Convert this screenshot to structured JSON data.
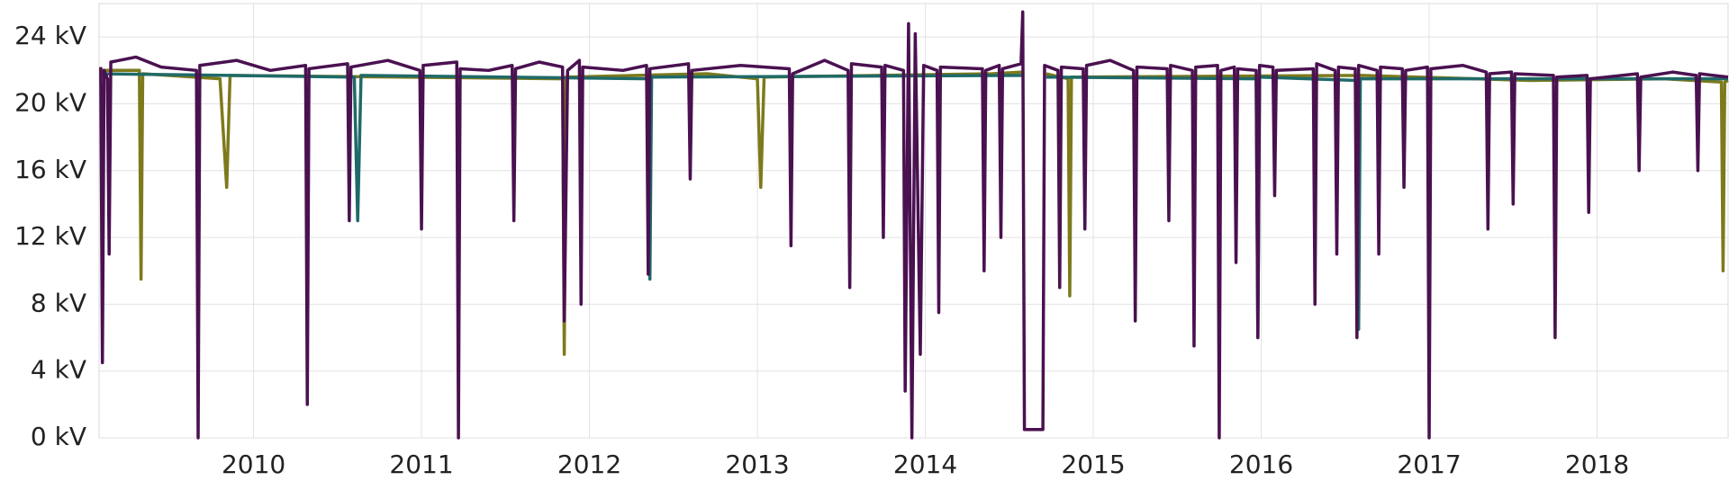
{
  "chart_data": {
    "type": "line",
    "xlim": [
      2009.08,
      2018.78
    ],
    "xticks": [
      2010,
      2011,
      2012,
      2013,
      2014,
      2015,
      2016,
      2017,
      2018
    ],
    "ylim": [
      0,
      26
    ],
    "yticks": [
      {
        "value": 0,
        "label": "0 kV"
      },
      {
        "value": 4,
        "label": "4 kV"
      },
      {
        "value": 8,
        "label": "8 kV"
      },
      {
        "value": 12,
        "label": "12 kV"
      },
      {
        "value": 16,
        "label": "16 kV"
      },
      {
        "value": 20,
        "label": "20 kV"
      },
      {
        "value": 24,
        "label": "24 kV"
      }
    ],
    "grid": true,
    "series": [
      {
        "color": "#7d7a1c",
        "x": [
          2009.09,
          2009.32,
          2009.33,
          2009.34,
          2009.8,
          2009.84,
          2009.86,
          2011.84,
          2011.85,
          2011.86,
          2012.7,
          2013.0,
          2013.02,
          2013.04,
          2014.4,
          2014.58,
          2014.59,
          2014.71,
          2014.72,
          2014.85,
          2014.86,
          2014.87,
          2016.6,
          2017.6,
          2018.4,
          2018.74,
          2018.75,
          2018.76,
          2018.78
        ],
        "values": [
          22,
          22,
          9.5,
          21.8,
          21.5,
          15,
          21.7,
          21.5,
          5,
          21.6,
          21.8,
          21.5,
          15,
          21.6,
          21.8,
          21.9,
          null,
          null,
          21.8,
          21.5,
          8.5,
          21.6,
          21.7,
          21.4,
          21.5,
          21.3,
          10,
          21.3,
          21.4
        ]
      },
      {
        "color": "#1f6a68",
        "x": [
          2009.09,
          2010.6,
          2010.62,
          2010.64,
          2012.35,
          2012.36,
          2012.37,
          2014.58,
          2014.59,
          2014.71,
          2014.72,
          2015.97,
          2015.98,
          2015.99,
          2016.57,
          2016.58,
          2016.59,
          2018.78
        ],
        "values": [
          21.8,
          21.6,
          13,
          21.7,
          21.5,
          9.5,
          21.6,
          21.7,
          null,
          null,
          21.6,
          21.5,
          6,
          21.6,
          21.4,
          6.5,
          21.5,
          21.5
        ]
      },
      {
        "color": "#4a1150",
        "x": [
          2009.09,
          2009.1,
          2009.11,
          2009.13,
          2009.14,
          2009.15,
          2009.3,
          2009.45,
          2009.66,
          2009.67,
          2009.68,
          2009.9,
          2010.1,
          2010.31,
          2010.32,
          2010.33,
          2010.56,
          2010.57,
          2010.58,
          2010.8,
          2010.99,
          2011.0,
          2011.01,
          2011.21,
          2011.22,
          2011.23,
          2011.4,
          2011.54,
          2011.55,
          2011.56,
          2011.7,
          2011.84,
          2011.85,
          2011.87,
          2011.94,
          2011.95,
          2011.96,
          2012.2,
          2012.34,
          2012.35,
          2012.36,
          2012.59,
          2012.6,
          2012.61,
          2012.9,
          2013.19,
          2013.2,
          2013.21,
          2013.4,
          2013.54,
          2013.55,
          2013.56,
          2013.74,
          2013.75,
          2013.76,
          2013.87,
          2013.88,
          2013.9,
          2013.92,
          2013.94,
          2013.97,
          2013.99,
          2014.07,
          2014.08,
          2014.09,
          2014.34,
          2014.35,
          2014.36,
          2014.44,
          2014.45,
          2014.46,
          2014.57,
          2014.58,
          2014.59,
          2014.7,
          2014.71,
          2014.79,
          2014.8,
          2014.81,
          2014.94,
          2014.95,
          2014.96,
          2015.1,
          2015.24,
          2015.25,
          2015.26,
          2015.44,
          2015.45,
          2015.46,
          2015.59,
          2015.6,
          2015.61,
          2015.74,
          2015.75,
          2015.76,
          2015.84,
          2015.85,
          2015.86,
          2015.97,
          2015.98,
          2015.99,
          2016.07,
          2016.08,
          2016.09,
          2016.31,
          2016.32,
          2016.33,
          2016.44,
          2016.45,
          2016.46,
          2016.56,
          2016.57,
          2016.58,
          2016.69,
          2016.7,
          2016.71,
          2016.84,
          2016.85,
          2016.86,
          2016.99,
          2017.0,
          2017.01,
          2017.2,
          2017.34,
          2017.35,
          2017.36,
          2017.49,
          2017.5,
          2017.51,
          2017.74,
          2017.75,
          2017.76,
          2017.94,
          2017.95,
          2017.96,
          2018.24,
          2018.25,
          2018.26,
          2018.45,
          2018.59,
          2018.6,
          2018.61,
          2018.78
        ],
        "values": [
          22.2,
          4.5,
          22,
          21.5,
          11,
          22.5,
          22.8,
          22.2,
          22,
          0,
          22.3,
          22.6,
          22.0,
          22.3,
          2,
          22.1,
          22.4,
          13,
          22.2,
          22.6,
          22.0,
          12.5,
          22.3,
          22.5,
          0,
          22.1,
          22.0,
          22.3,
          13,
          22.1,
          22.5,
          22.2,
          7,
          22,
          22.6,
          8,
          22.2,
          22.0,
          22.3,
          9.8,
          22.1,
          22.4,
          15.5,
          22.0,
          22.3,
          22.1,
          11.5,
          21.8,
          22.6,
          22.0,
          9,
          22.4,
          22.2,
          12,
          22.3,
          22.0,
          2.8,
          24.8,
          0,
          24.2,
          5,
          22.3,
          22,
          7.5,
          22.2,
          22.1,
          10,
          22.0,
          22.3,
          12,
          22.1,
          22.4,
          25.5,
          0.5,
          0.5,
          22.3,
          22.0,
          9,
          22.2,
          22.1,
          12.5,
          22.3,
          22.6,
          22.0,
          7,
          22.2,
          22.1,
          13,
          22.3,
          22.0,
          5.5,
          22.2,
          22.3,
          0,
          22.0,
          22.2,
          10.5,
          22.1,
          22.0,
          6,
          22.3,
          22.2,
          14.5,
          22.0,
          22.1,
          8,
          22.4,
          22.0,
          11,
          22.2,
          22.1,
          6,
          22.3,
          22.0,
          11,
          22.2,
          22.1,
          15,
          22.0,
          22.2,
          0,
          22.1,
          22.3,
          21.9,
          12.5,
          21.8,
          21.9,
          14,
          21.8,
          21.7,
          6,
          21.6,
          21.7,
          13.5,
          21.5,
          21.8,
          16,
          21.6,
          21.9,
          21.7,
          16,
          21.8,
          21.6
        ]
      }
    ]
  }
}
